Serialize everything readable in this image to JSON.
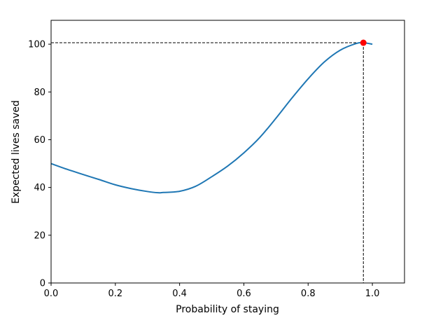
{
  "chart_data": {
    "type": "line",
    "title": "",
    "xlabel": "Probability of staying",
    "ylabel": "Expected lives saved",
    "xlim": [
      0.0,
      1.1
    ],
    "ylim": [
      0,
      110
    ],
    "xticks": [
      0.0,
      0.2,
      0.4,
      0.6,
      0.8,
      1.0
    ],
    "xtick_labels": [
      "0.0",
      "0.2",
      "0.4",
      "0.6",
      "0.8",
      "1.0"
    ],
    "yticks": [
      0,
      20,
      40,
      60,
      80,
      100
    ],
    "ytick_labels": [
      "0",
      "20",
      "40",
      "60",
      "80",
      "100"
    ],
    "grid": false,
    "series": [
      {
        "color": "#1f77b4",
        "x": [
          0.0,
          0.05,
          0.1,
          0.15,
          0.2,
          0.25,
          0.3,
          0.333,
          0.35,
          0.4,
          0.45,
          0.5,
          0.55,
          0.6,
          0.65,
          0.7,
          0.75,
          0.8,
          0.85,
          0.9,
          0.95,
          0.972,
          1.0
        ],
        "y": [
          50.0,
          47.6,
          45.4,
          43.3,
          41.1,
          39.5,
          38.3,
          37.8,
          37.9,
          38.4,
          40.5,
          44.5,
          49.0,
          54.5,
          61.0,
          69.0,
          77.5,
          85.5,
          92.5,
          97.5,
          100.3,
          100.6,
          100.0
        ]
      }
    ],
    "annotations": {
      "max_point": {
        "x": 0.972,
        "y": 100.6,
        "color": "#ff0000"
      },
      "guide_line_color": "#000000"
    }
  }
}
